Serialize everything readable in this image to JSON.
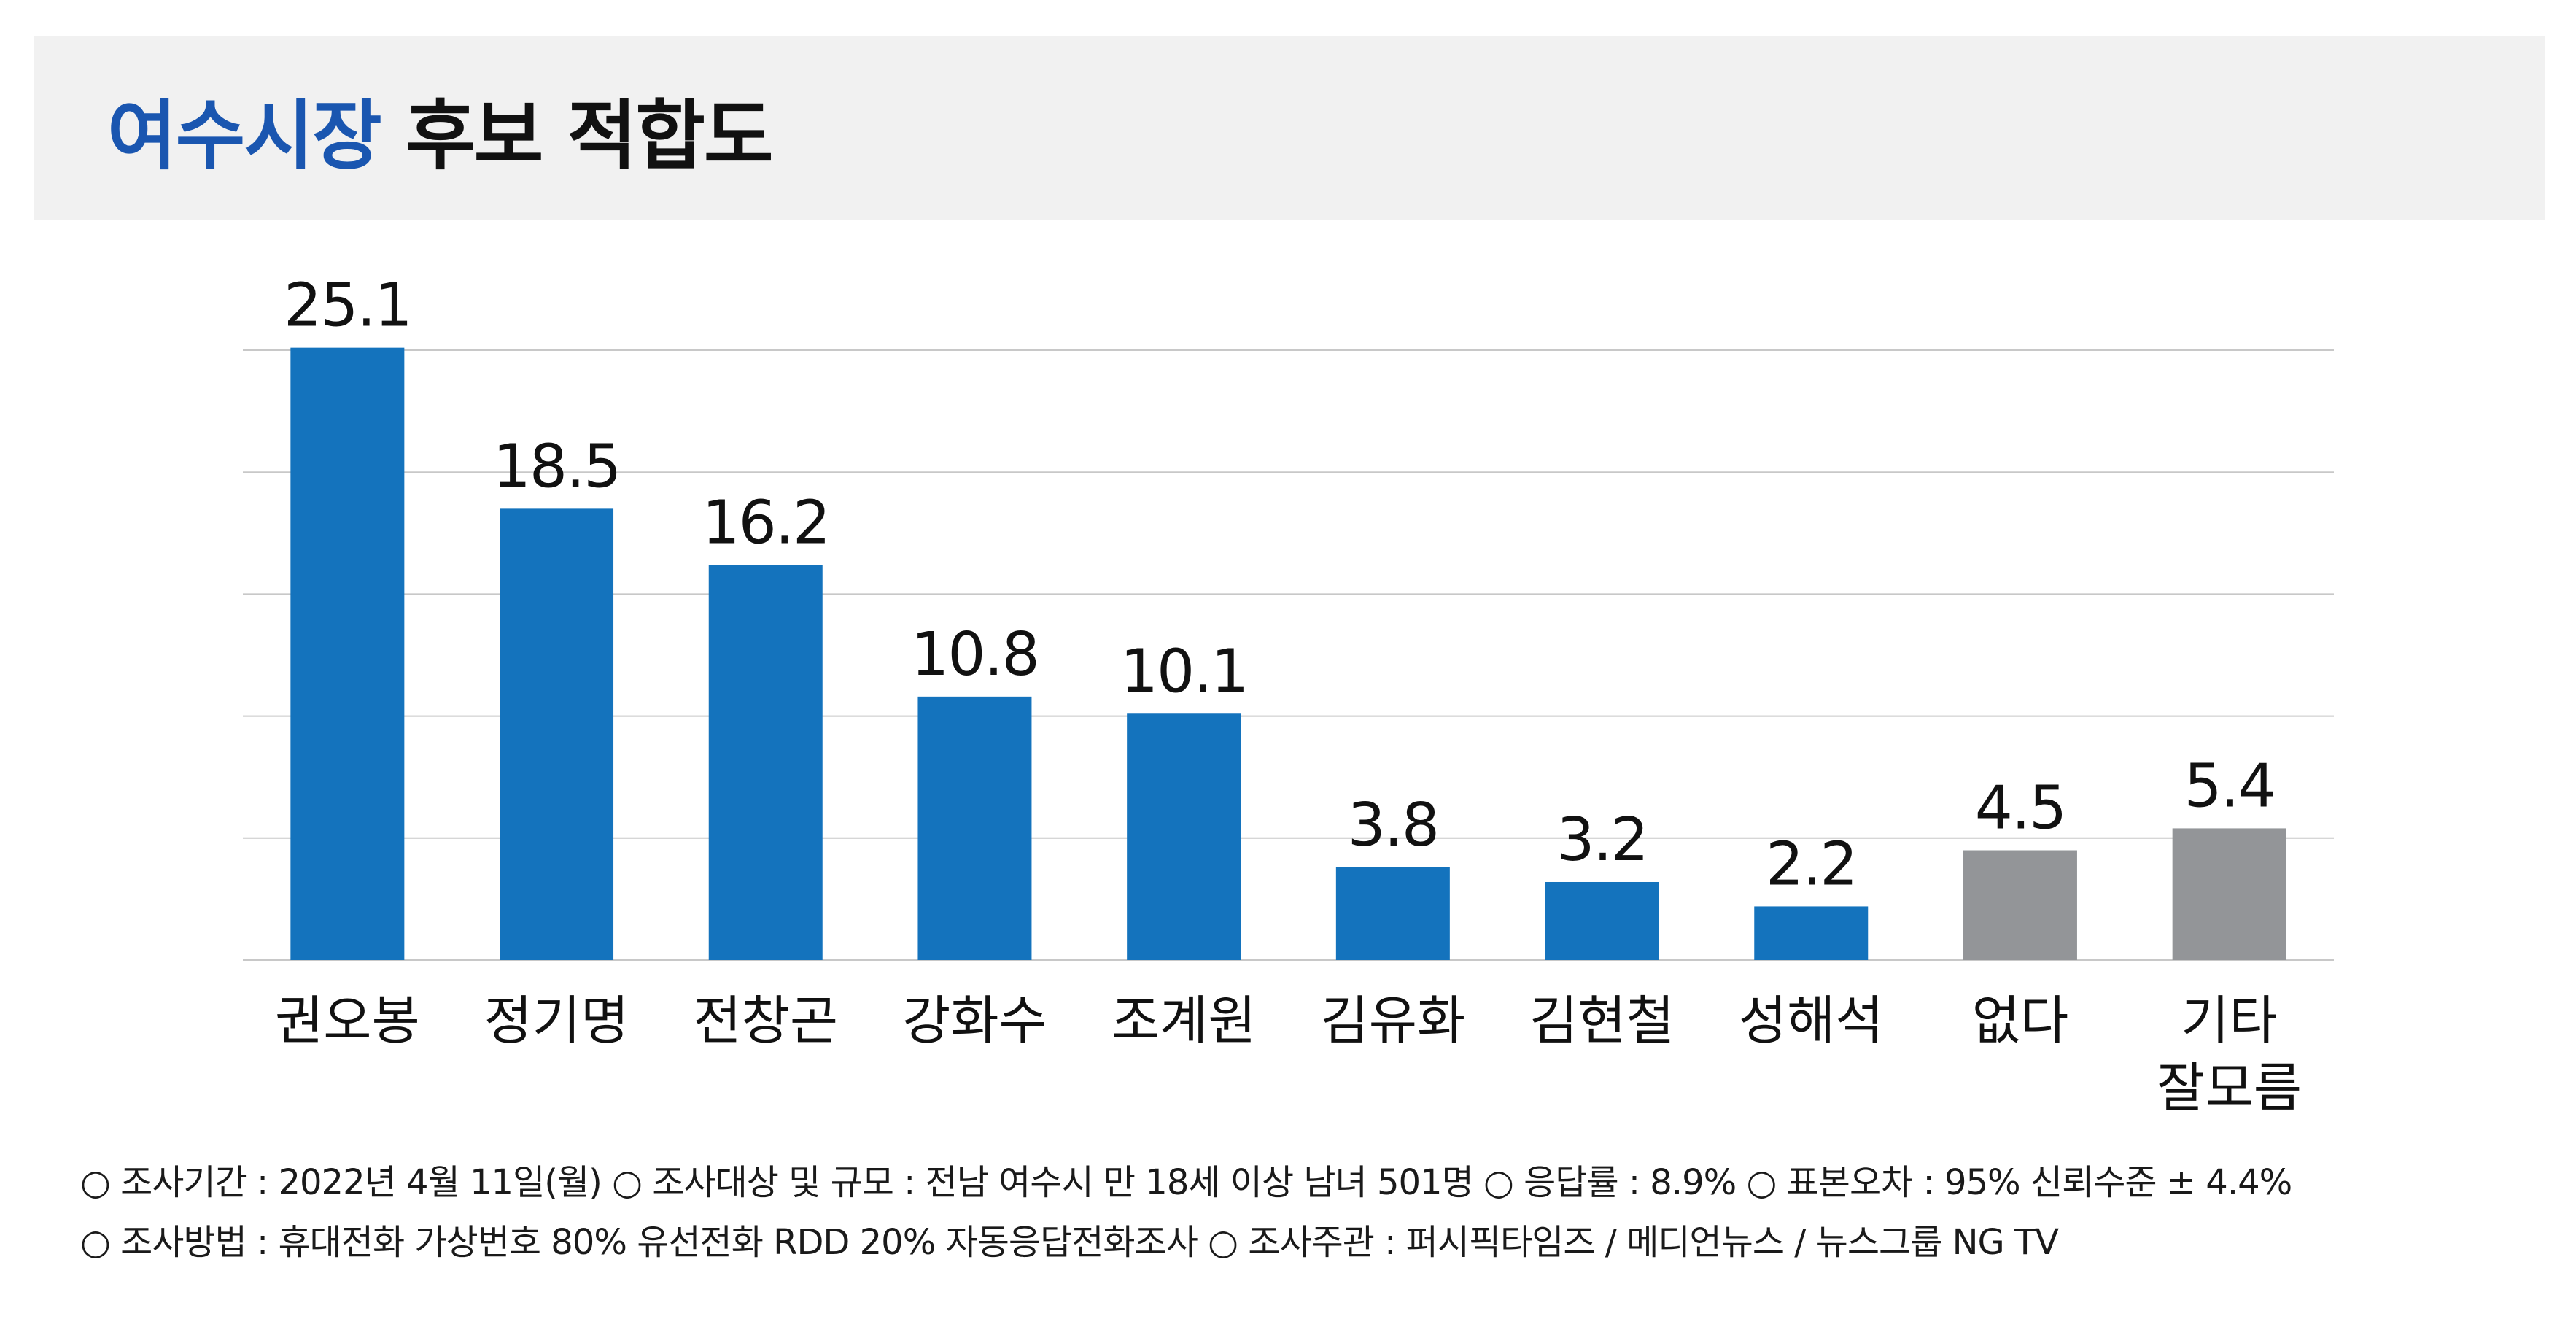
{
  "header": {
    "title_highlight": "여수시장",
    "title_rest": "후보 적합도"
  },
  "colors": {
    "title_highlight": "#1a56b0",
    "candidate_bar": "#1473bd",
    "other_bar": "#939598",
    "gridline": "#c8c8c8",
    "header_background": "#f1f1f1"
  },
  "chart_data": {
    "type": "bar",
    "categories": [
      "권오봉",
      "정기명",
      "전창곤",
      "강화수",
      "조계원",
      "김유화",
      "김현철",
      "성해석",
      "없다",
      "기타\n잘모름"
    ],
    "values": [
      25.1,
      18.5,
      16.2,
      10.8,
      10.1,
      3.8,
      3.2,
      2.2,
      4.5,
      5.4
    ],
    "value_labels": [
      "25.1",
      "18.5",
      "16.2",
      "10.8",
      "10.1",
      "3.8",
      "3.2",
      "2.2",
      "4.5",
      "5.4"
    ],
    "bar_groups": [
      "candidate",
      "candidate",
      "candidate",
      "candidate",
      "candidate",
      "candidate",
      "candidate",
      "candidate",
      "other",
      "other"
    ],
    "ylim": [
      0,
      25
    ],
    "gridlines": [
      5,
      10,
      15,
      20,
      25
    ],
    "grid": true,
    "legend": "none",
    "xlabel": "",
    "ylabel": ""
  },
  "footnotes": {
    "line1": "○ 조사기간 : 2022년 4월 11일(월)  ○ 조사대상 및 규모 : 전남 여수시 만 18세 이상 남녀 501명  ○ 응답률 : 8.9%   ○ 표본오차 : 95% 신뢰수준 ± 4.4%",
    "line2": "○ 조사방법 : 휴대전화 가상번호 80%  유선전화 RDD 20%  자동응답전화조사   ○  조사주관 : 퍼시픽타임즈 / 메디언뉴스 / 뉴스그룹 NG TV"
  }
}
